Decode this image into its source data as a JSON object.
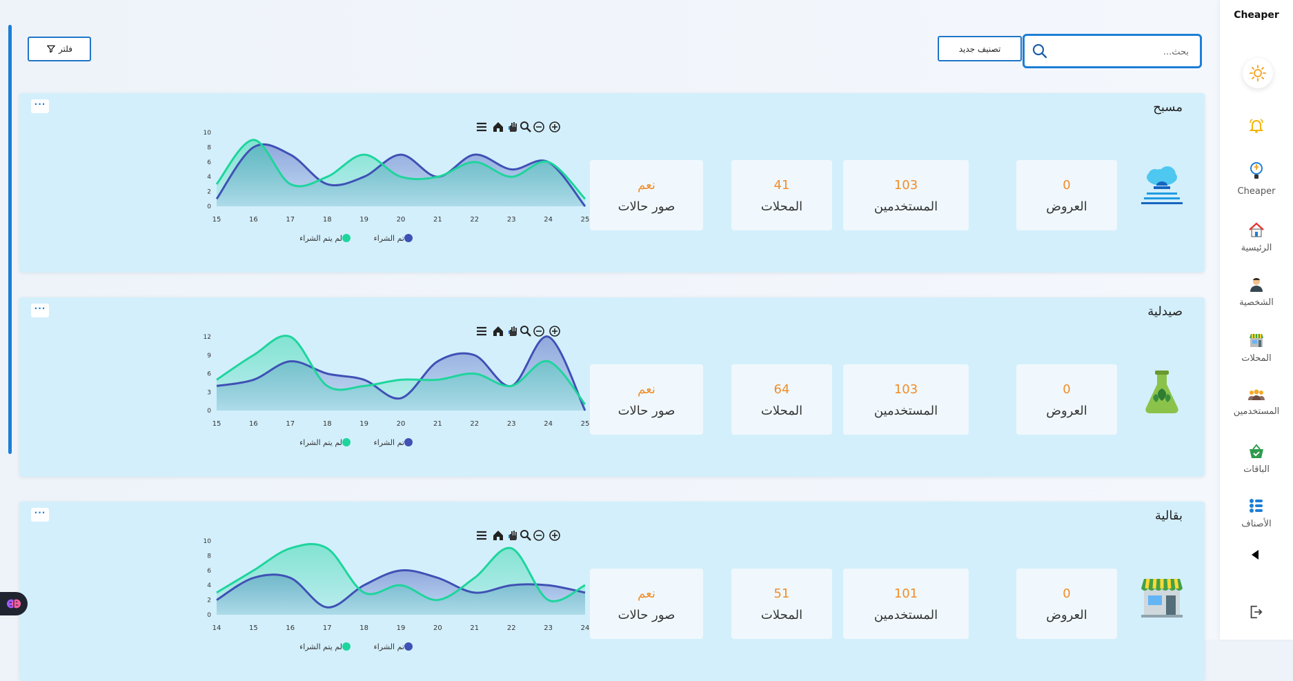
{
  "sidebar": {
    "brand": "Cheaper",
    "items": [
      {
        "label": "",
        "icon": "bell-icon"
      },
      {
        "label": "Cheaper",
        "icon": "brain-bulb-icon"
      },
      {
        "label": "الرئيسية",
        "icon": "home-icon"
      },
      {
        "label": "الشخصية",
        "icon": "user-icon"
      },
      {
        "label": "المحلات",
        "icon": "store-icon"
      },
      {
        "label": "المستخدمين",
        "icon": "users-icon"
      },
      {
        "label": "الباقات",
        "icon": "basket-icon"
      },
      {
        "label": "الأصناف",
        "icon": "list-icon"
      }
    ]
  },
  "toolbar": {
    "search_placeholder": "بحث...",
    "new_category_label": "تصنيف جديد",
    "filter_label": "فلتر"
  },
  "cards": [
    {
      "title": "مسبح",
      "icon": "pool-icon",
      "stats": [
        {
          "value": "0",
          "label": "العروض"
        },
        {
          "value": "103",
          "label": "المستخدمين"
        },
        {
          "value": "41",
          "label": "المحلات"
        },
        {
          "value": "نعم",
          "label": "صور حالات"
        }
      ],
      "chart_data": {
        "type": "area",
        "x": [
          15,
          16,
          17,
          18,
          19,
          20,
          21,
          22,
          23,
          24,
          25
        ],
        "ylim": [
          0,
          10
        ],
        "yticks": [
          0,
          2,
          4,
          6,
          8,
          10
        ],
        "series": [
          {
            "name": "تم الشراء",
            "color": "#3f51b5",
            "values": [
              1,
              8,
              7,
              3,
              4,
              7,
              4,
              7,
              5,
              6,
              0
            ]
          },
          {
            "name": "لم يتم الشراء",
            "color": "#1ed59c",
            "values": [
              3,
              9,
              3,
              4,
              7,
              4,
              4,
              6,
              4,
              6,
              1
            ]
          }
        ]
      }
    },
    {
      "title": "صيدلية",
      "icon": "flask-icon",
      "stats": [
        {
          "value": "0",
          "label": "العروض"
        },
        {
          "value": "103",
          "label": "المستخدمين"
        },
        {
          "value": "64",
          "label": "المحلات"
        },
        {
          "value": "نعم",
          "label": "صور حالات"
        }
      ],
      "chart_data": {
        "type": "area",
        "x": [
          15,
          16,
          17,
          18,
          19,
          20,
          21,
          22,
          23,
          24,
          25
        ],
        "ylim": [
          0,
          12
        ],
        "yticks": [
          0,
          3,
          6,
          9,
          12
        ],
        "series": [
          {
            "name": "تم الشراء",
            "color": "#3f51b5",
            "values": [
              4,
              5,
              8,
              6,
              5,
              2,
              8,
              9,
              4,
              12,
              0
            ]
          },
          {
            "name": "لم يتم الشراء",
            "color": "#1ed59c",
            "values": [
              5,
              9,
              12,
              4,
              4,
              5,
              5,
              6,
              4,
              8,
              1
            ]
          }
        ]
      }
    },
    {
      "title": "بقالية",
      "icon": "shop-icon",
      "stats": [
        {
          "value": "0",
          "label": "العروض"
        },
        {
          "value": "101",
          "label": "المستخدمين"
        },
        {
          "value": "51",
          "label": "المحلات"
        },
        {
          "value": "نعم",
          "label": "صور حالات"
        }
      ],
      "chart_data": {
        "type": "area",
        "x": [
          14,
          15,
          16,
          17,
          18,
          19,
          20,
          21,
          22,
          23,
          24
        ],
        "ylim": [
          0,
          10
        ],
        "yticks": [
          0,
          2,
          4,
          6,
          8,
          10
        ],
        "series": [
          {
            "name": "تم الشراء",
            "color": "#3f51b5",
            "values": [
              2,
              5,
              5,
              1,
              4,
              6,
              5,
              3,
              4,
              4,
              3
            ]
          },
          {
            "name": "لم يتم الشراء",
            "color": "#1ed59c",
            "values": [
              3,
              6,
              9,
              9,
              3,
              4,
              2,
              5,
              9,
              2,
              4
            ]
          }
        ]
      }
    }
  ]
}
